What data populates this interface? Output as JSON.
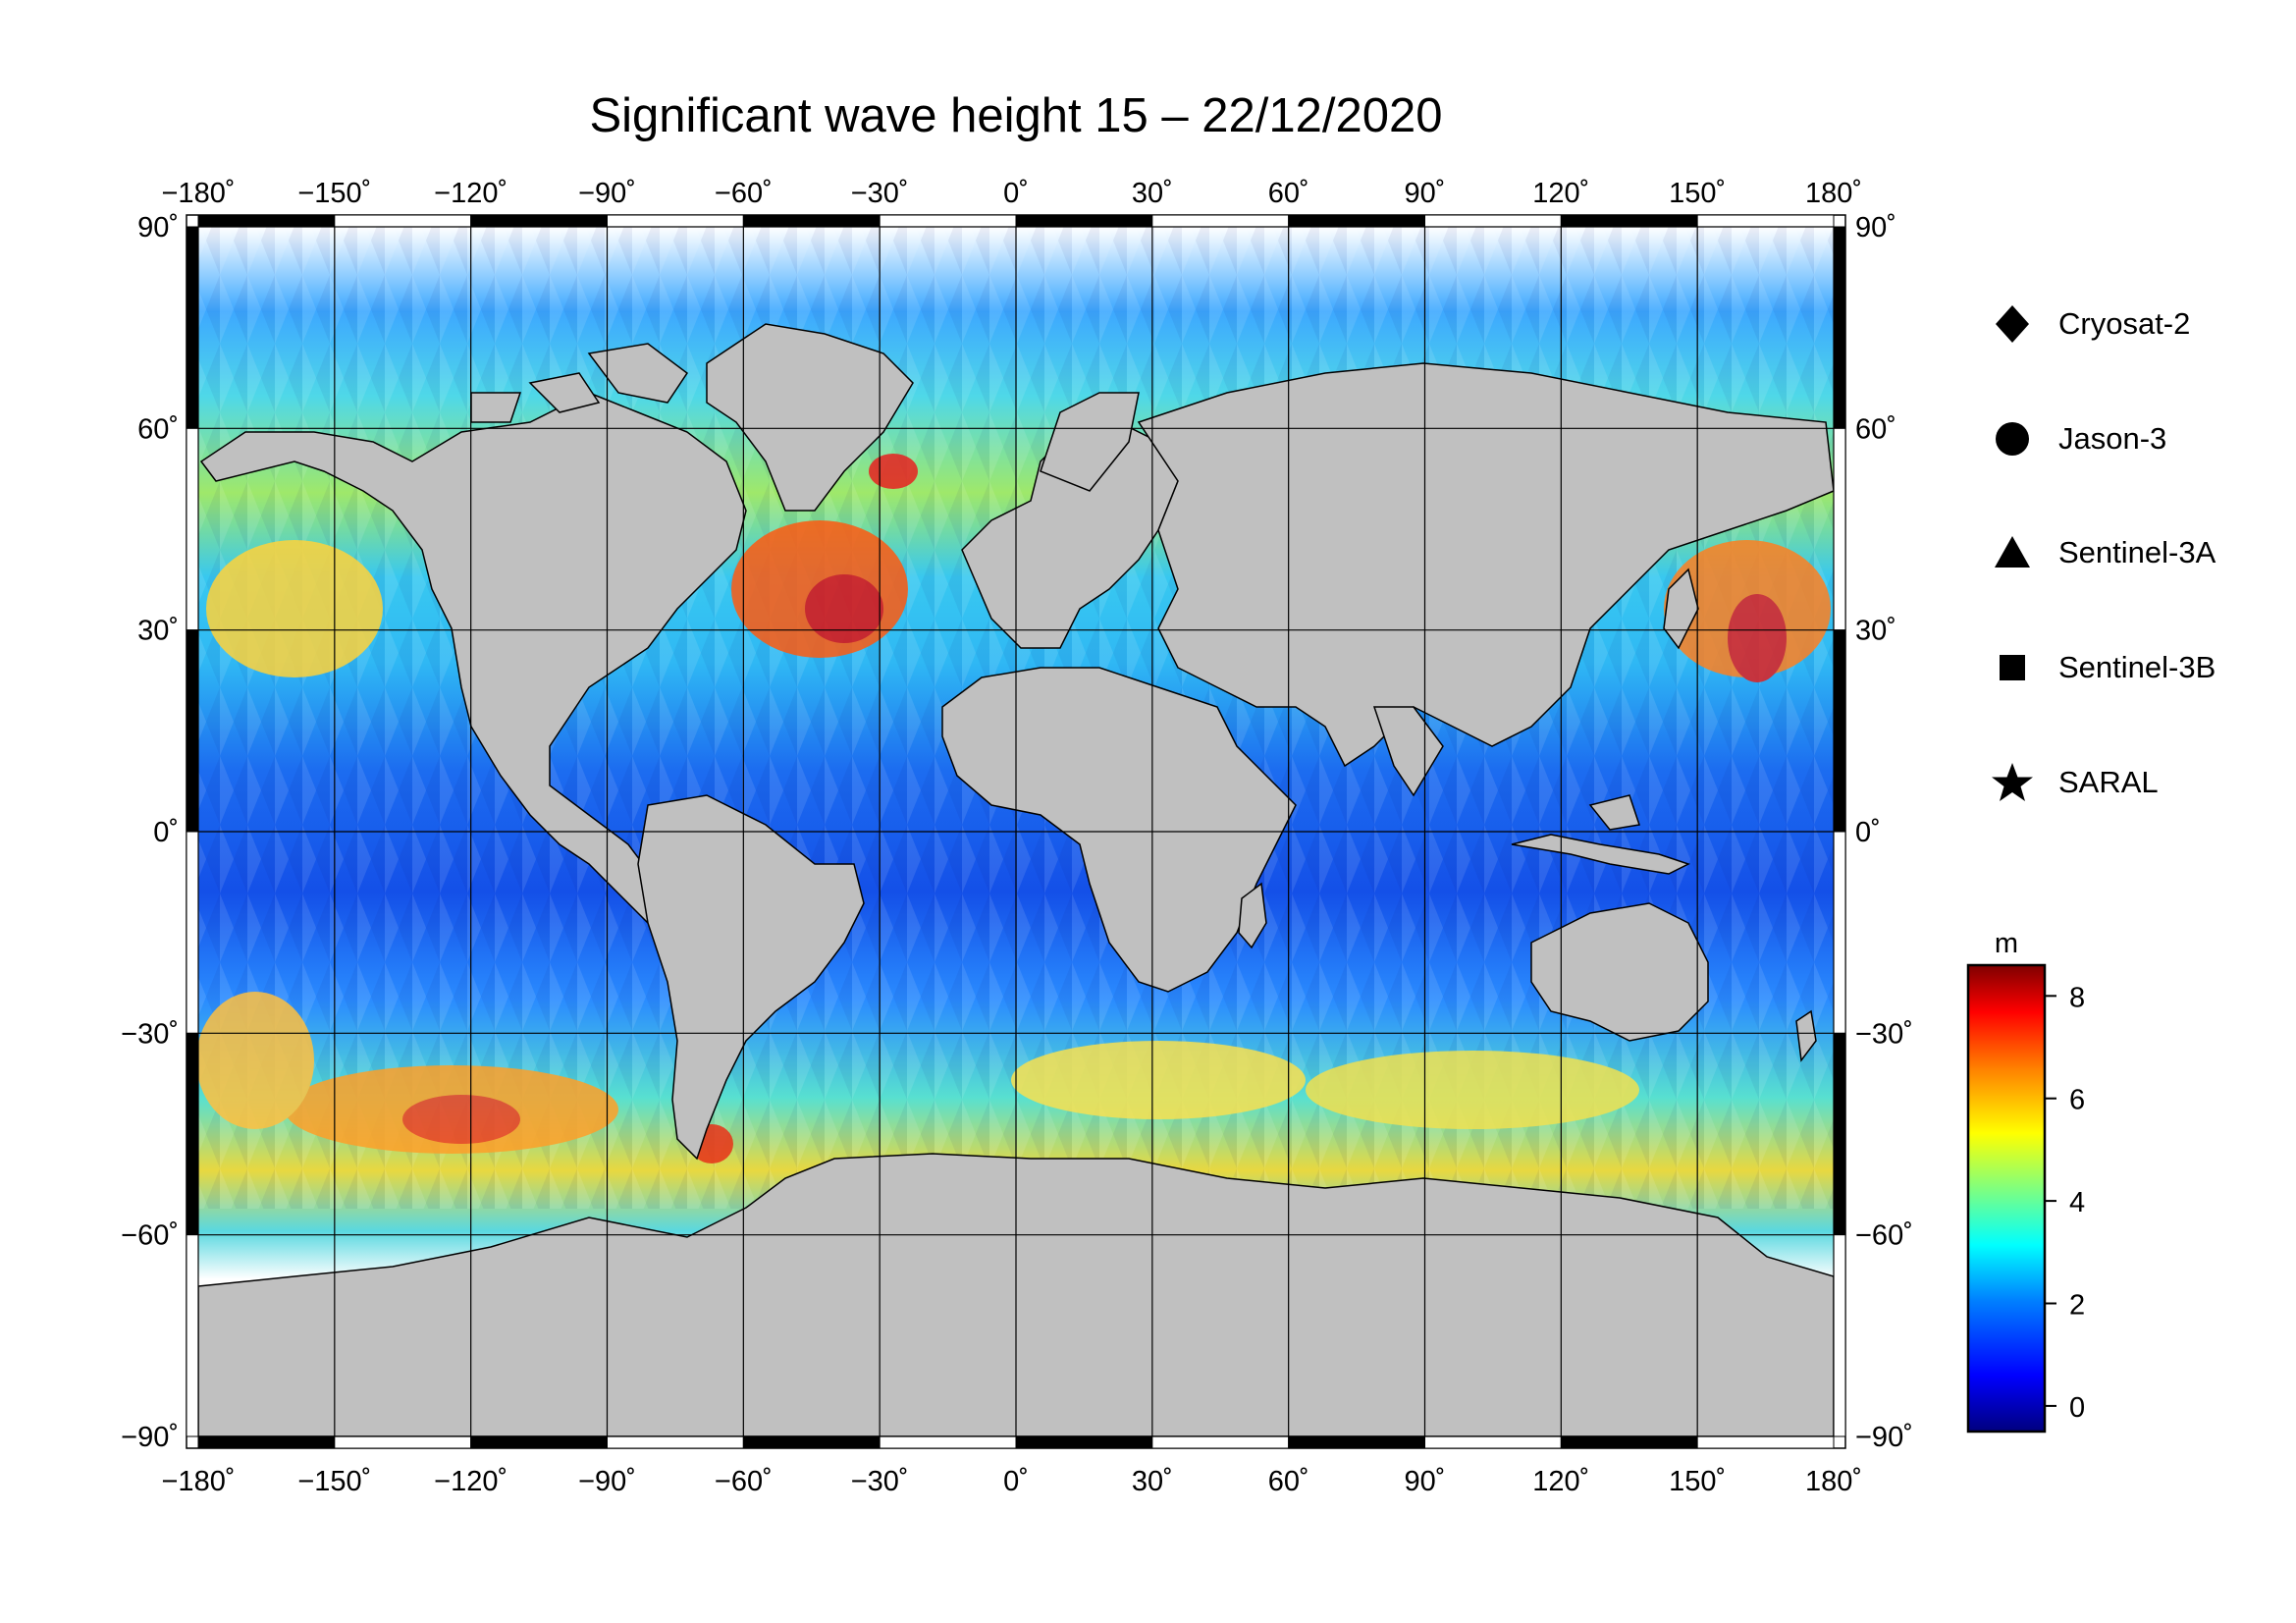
{
  "title": "Significant wave height 15 – 22/12/2020",
  "map": {
    "projection": "equirectangular",
    "lon_range": [
      -180,
      180
    ],
    "lat_range": [
      -90,
      90
    ],
    "lon_ticks": [
      "−180˚",
      "−150˚",
      "−120˚",
      "−90˚",
      "−60˚",
      "−30˚",
      "0˚",
      "30˚",
      "60˚",
      "90˚",
      "120˚",
      "150˚",
      "180˚"
    ],
    "lat_ticks": [
      "90˚",
      "60˚",
      "30˚",
      "0˚",
      "−30˚",
      "−60˚",
      "−90˚"
    ],
    "lat_ticks_right": [
      "90˚",
      "60˚",
      "30˚",
      "0˚",
      "−30˚",
      "−60˚",
      "−90˚"
    ],
    "gridlines": true,
    "land_color": "#c0c0c0",
    "sea_ice_color": "#ffffff"
  },
  "legend": {
    "items": [
      {
        "label": "Cryosat-2",
        "symbol": "diamond"
      },
      {
        "label": "Jason-3",
        "symbol": "circle"
      },
      {
        "label": "Sentinel-3A",
        "symbol": "triangle"
      },
      {
        "label": "Sentinel-3B",
        "symbol": "square"
      },
      {
        "label": "SARAL",
        "symbol": "star"
      }
    ]
  },
  "colorbar": {
    "unit": "m",
    "range": [
      -0.5,
      8.6
    ],
    "ticks": [
      "0",
      "2",
      "4",
      "6",
      "8"
    ],
    "tick_values": [
      0,
      2,
      4,
      6,
      8
    ],
    "colormap": [
      "#00007f",
      "#0000ff",
      "#007fff",
      "#00ffff",
      "#7fff7f",
      "#ffff00",
      "#ff7f00",
      "#ff0000",
      "#7f0000"
    ]
  },
  "chart_data": {
    "type": "heatmap",
    "title": "Significant wave height 15 – 22/12/2020",
    "unit": "m",
    "value_range": [
      0,
      8
    ],
    "x": "longitude",
    "y": "latitude",
    "xlim": [
      -180,
      180
    ],
    "ylim": [
      -90,
      90
    ]
  }
}
